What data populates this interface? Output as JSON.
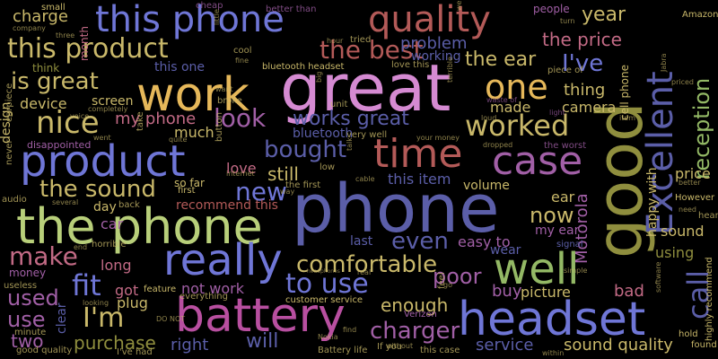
{
  "background": "#000000",
  "palette": {
    "indigo": "#5b5ea8",
    "blue": "#6f76d6",
    "olive": "#8f8e3e",
    "khaki": "#c9b86a",
    "gold": "#e6b85a",
    "green": "#93b865",
    "lime": "#b8cf7a",
    "brick": "#b35a58",
    "rose": "#c26a85",
    "pink": "#d58ad2",
    "purple": "#a15fa6",
    "magenta": "#b84fa0",
    "slate": "#4f5a93",
    "dim": "#3a3a5a"
  },
  "words": [
    {
      "id": "w-great",
      "text": "great",
      "color": "pink"
    },
    {
      "id": "w-phone",
      "text": "phone",
      "color": "indigo"
    },
    {
      "id": "w-the-phone",
      "text": "the phone",
      "color": "lime"
    },
    {
      "id": "w-good",
      "text": "good",
      "color": "olive"
    },
    {
      "id": "w-headset",
      "text": "headset",
      "color": "blue"
    },
    {
      "id": "w-battery",
      "text": "battery",
      "color": "magenta"
    },
    {
      "id": "w-product",
      "text": "product",
      "color": "blue"
    },
    {
      "id": "w-work",
      "text": "work",
      "color": "gold"
    },
    {
      "id": "w-this-phone",
      "text": "this phone",
      "color": "blue"
    },
    {
      "id": "w-quality",
      "text": "quality",
      "color": "brick"
    },
    {
      "id": "w-excellent",
      "text": "Excellent",
      "color": "indigo"
    },
    {
      "id": "w-time",
      "text": "time",
      "color": "brick"
    },
    {
      "id": "w-case",
      "text": "case",
      "color": "purple"
    },
    {
      "id": "w-really",
      "text": "really",
      "color": "blue"
    },
    {
      "id": "w-well",
      "text": "well",
      "color": "green"
    },
    {
      "id": "w-call",
      "text": "call",
      "color": "indigo"
    },
    {
      "id": "w-this-product",
      "text": "this product",
      "color": "khaki"
    },
    {
      "id": "w-one",
      "text": "one",
      "color": "gold"
    },
    {
      "id": "w-the-best",
      "text": "the best",
      "color": "brick"
    },
    {
      "id": "w-is-great",
      "text": "is great",
      "color": "khaki"
    },
    {
      "id": "w-nice",
      "text": "nice",
      "color": "khaki"
    },
    {
      "id": "w-worked",
      "text": "worked",
      "color": "khaki"
    },
    {
      "id": "w-look",
      "text": "look",
      "color": "purple"
    },
    {
      "id": "w-works-great",
      "text": "works great",
      "color": "indigo"
    },
    {
      "id": "w-comfortable",
      "text": "comfortable",
      "color": "khaki"
    },
    {
      "id": "w-to-use",
      "text": "to use",
      "color": "blue"
    },
    {
      "id": "w-the-sound",
      "text": "the sound",
      "color": "khaki"
    },
    {
      "id": "w-new",
      "text": "new",
      "color": "blue"
    },
    {
      "id": "w-bought",
      "text": "bought",
      "color": "indigo"
    },
    {
      "id": "w-reception",
      "text": "reception",
      "color": "green"
    },
    {
      "id": "w-ive",
      "text": "I've",
      "color": "blue"
    },
    {
      "id": "w-the-ear",
      "text": "the ear",
      "color": "khaki"
    },
    {
      "id": "w-year",
      "text": "year",
      "color": "khaki"
    },
    {
      "id": "w-the-price",
      "text": "the price",
      "color": "rose"
    },
    {
      "id": "w-make",
      "text": "make",
      "color": "rose"
    },
    {
      "id": "w-fit",
      "text": "fit",
      "color": "blue"
    },
    {
      "id": "w-im",
      "text": "I'm",
      "color": "khaki"
    },
    {
      "id": "w-charger",
      "text": "charger",
      "color": "purple"
    },
    {
      "id": "w-even",
      "text": "even",
      "color": "indigo"
    },
    {
      "id": "w-now",
      "text": "now",
      "color": "khaki"
    },
    {
      "id": "w-poor",
      "text": "poor",
      "color": "purple"
    },
    {
      "id": "w-used",
      "text": "used",
      "color": "purple"
    },
    {
      "id": "w-use",
      "text": "use",
      "color": "purple"
    },
    {
      "id": "w-two",
      "text": "two",
      "color": "purple"
    },
    {
      "id": "w-purchase",
      "text": "purchase",
      "color": "olive"
    },
    {
      "id": "w-will",
      "text": "will",
      "color": "indigo"
    },
    {
      "id": "w-right",
      "text": "right",
      "color": "indigo"
    },
    {
      "id": "w-enough",
      "text": "enough",
      "color": "khaki"
    },
    {
      "id": "w-service",
      "text": "service",
      "color": "indigo"
    },
    {
      "id": "w-sound-quality",
      "text": "sound quality",
      "color": "khaki"
    },
    {
      "id": "w-motorola",
      "text": "Motorola",
      "color": "purple"
    },
    {
      "id": "w-sound",
      "text": "sound",
      "color": "khaki"
    },
    {
      "id": "w-using",
      "text": "using",
      "color": "olive"
    },
    {
      "id": "w-bad",
      "text": "bad",
      "color": "rose"
    },
    {
      "id": "w-buy",
      "text": "buy",
      "color": "purple"
    },
    {
      "id": "w-picture",
      "text": "picture",
      "color": "khaki"
    },
    {
      "id": "w-my-phone",
      "text": "my phone",
      "color": "rose"
    },
    {
      "id": "w-much",
      "text": "much",
      "color": "khaki"
    },
    {
      "id": "w-device",
      "text": "device",
      "color": "khaki"
    },
    {
      "id": "w-charge",
      "text": "charge",
      "color": "khaki"
    },
    {
      "id": "w-problem",
      "text": "problem",
      "color": "indigo"
    },
    {
      "id": "w-thing",
      "text": "thing",
      "color": "khaki"
    },
    {
      "id": "w-made",
      "text": "made",
      "color": "khaki"
    },
    {
      "id": "w-camera",
      "text": "camera",
      "color": "khaki"
    },
    {
      "id": "w-still",
      "text": "still",
      "color": "khaki"
    },
    {
      "id": "w-love",
      "text": "love",
      "color": "rose"
    },
    {
      "id": "w-car",
      "text": "car",
      "color": "purple"
    },
    {
      "id": "w-long",
      "text": "long",
      "color": "rose"
    },
    {
      "id": "w-plug",
      "text": "plug",
      "color": "khaki"
    },
    {
      "id": "w-got",
      "text": "got",
      "color": "rose"
    },
    {
      "id": "w-not-work",
      "text": "not work",
      "color": "purple"
    },
    {
      "id": "w-volume",
      "text": "volume",
      "color": "khaki"
    },
    {
      "id": "w-ear",
      "text": "ear",
      "color": "khaki"
    },
    {
      "id": "w-this-item",
      "text": "this item",
      "color": "indigo"
    },
    {
      "id": "w-easy-to",
      "text": "easy to",
      "color": "purple"
    },
    {
      "id": "w-my-ear",
      "text": "my ear",
      "color": "purple"
    },
    {
      "id": "w-wear",
      "text": "wear",
      "color": "indigo"
    },
    {
      "id": "w-last",
      "text": "last",
      "color": "indigo"
    },
    {
      "id": "w-price",
      "text": "price",
      "color": "khaki"
    },
    {
      "id": "w-happy-with",
      "text": "happy with",
      "color": "khaki"
    },
    {
      "id": "w-cell-phone",
      "text": "cell phone",
      "color": "khaki"
    },
    {
      "id": "w-design",
      "text": "design",
      "color": "khaki"
    },
    {
      "id": "w-screen",
      "text": "screen",
      "color": "khaki"
    },
    {
      "id": "w-working",
      "text": "working",
      "color": "indigo"
    },
    {
      "id": "w-this-one",
      "text": "this one",
      "color": "indigo"
    },
    {
      "id": "w-recommend-this",
      "text": "recommend this",
      "color": "brick"
    },
    {
      "id": "w-bluetooth",
      "text": "bluetooth",
      "color": "indigo"
    },
    {
      "id": "w-bluetooth-headset",
      "text": "bluetooth headset",
      "color": "khaki"
    },
    {
      "id": "w-disappointed",
      "text": "disappointed",
      "color": "purple"
    },
    {
      "id": "w-people",
      "text": "people",
      "color": "purple"
    },
    {
      "id": "w-month",
      "text": "month",
      "color": "rose"
    },
    {
      "id": "w-think",
      "text": "think",
      "color": "olive"
    },
    {
      "id": "w-day",
      "text": "day",
      "color": "khaki"
    },
    {
      "id": "w-so-far",
      "text": "so far",
      "color": "khaki"
    },
    {
      "id": "w-first",
      "text": "first",
      "color": "khaki"
    },
    {
      "id": "w-feature",
      "text": "feature",
      "color": "khaki"
    },
    {
      "id": "w-customer-service",
      "text": "customer service",
      "color": "khaki"
    },
    {
      "id": "w-verizon",
      "text": "Verizon",
      "color": "purple"
    },
    {
      "id": "w-clear",
      "text": "clear",
      "color": "indigo"
    },
    {
      "id": "w-money",
      "text": "money",
      "color": "purple"
    },
    {
      "id": "w-however",
      "text": "However",
      "color": "khaki"
    },
    {
      "id": "w-amazon",
      "text": "Amazon",
      "color": "khaki"
    },
    {
      "id": "w-highly-recommend",
      "text": "highly recommend",
      "color": "khaki"
    },
    {
      "id": "w-found",
      "text": "found",
      "color": "khaki"
    },
    {
      "id": "w-hold",
      "text": "hold",
      "color": "khaki"
    },
    {
      "id": "w-signal",
      "text": "signal",
      "color": "indigo"
    },
    {
      "id": "w-small",
      "text": "small",
      "color": "khaki"
    },
    {
      "id": "w-company",
      "text": "company",
      "color": "khaki"
    },
    {
      "id": "w-three",
      "text": "three",
      "color": "khaki"
    },
    {
      "id": "w-cheap",
      "text": "cheap",
      "color": "purple"
    },
    {
      "id": "w-better-than",
      "text": "better than",
      "color": "purple"
    },
    {
      "id": "w-turn",
      "text": "turn",
      "color": "khaki"
    },
    {
      "id": "w-little",
      "text": "little",
      "color": "khaki"
    },
    {
      "id": "w-cool",
      "text": "cool",
      "color": "khaki"
    },
    {
      "id": "w-fine",
      "text": "fine",
      "color": "khaki"
    },
    {
      "id": "w-hour",
      "text": "hour",
      "color": "khaki"
    },
    {
      "id": "w-tried",
      "text": "tried",
      "color": "khaki"
    },
    {
      "id": "w-love-this",
      "text": "love this",
      "color": "khaki"
    },
    {
      "id": "w-piece-of",
      "text": "piece of",
      "color": "khaki"
    },
    {
      "id": "w-jabra",
      "text": "Jabra",
      "color": "khaki"
    },
    {
      "id": "w-priced",
      "text": "priced",
      "color": "khaki"
    },
    {
      "id": "w-waste-of",
      "text": "waste of",
      "color": "purple"
    },
    {
      "id": "w-light",
      "text": "light",
      "color": "purple"
    },
    {
      "id": "w-item",
      "text": "item",
      "color": "khaki"
    },
    {
      "id": "w-unit",
      "text": "unit",
      "color": "khaki"
    },
    {
      "id": "w-big",
      "text": "big",
      "color": "khaki"
    },
    {
      "id": "w-terrible",
      "text": "terrible",
      "color": "khaki"
    },
    {
      "id": "w-loud",
      "text": "loud",
      "color": "khaki"
    },
    {
      "id": "w-very-well",
      "text": "very well",
      "color": "khaki"
    },
    {
      "id": "w-your-money",
      "text": "your money",
      "color": "khaki"
    },
    {
      "id": "w-the-worst",
      "text": "the worst",
      "color": "purple"
    },
    {
      "id": "w-dropped",
      "text": "dropped",
      "color": "khaki"
    },
    {
      "id": "w-broke",
      "text": "broke",
      "color": "khaki"
    },
    {
      "id": "w-button",
      "text": "button",
      "color": "khaki"
    },
    {
      "id": "w-internet",
      "text": "internet",
      "color": "khaki"
    },
    {
      "id": "w-the-first",
      "text": "the first",
      "color": "khaki"
    },
    {
      "id": "w-way",
      "text": "way",
      "color": "khaki"
    },
    {
      "id": "w-cable",
      "text": "cable",
      "color": "khaki"
    },
    {
      "id": "w-talk",
      "text": "talk",
      "color": "khaki"
    },
    {
      "id": "w-low",
      "text": "low",
      "color": "khaki"
    },
    {
      "id": "w-without",
      "text": "without",
      "color": "khaki"
    },
    {
      "id": "w-several",
      "text": "several",
      "color": "khaki"
    },
    {
      "id": "w-back",
      "text": "back",
      "color": "khaki"
    },
    {
      "id": "w-audio",
      "text": "audio",
      "color": "khaki"
    },
    {
      "id": "w-never",
      "text": "never",
      "color": "khaki"
    },
    {
      "id": "w-horrible",
      "text": "horrible",
      "color": "khaki"
    },
    {
      "id": "w-end",
      "text": "end",
      "color": "khaki"
    },
    {
      "id": "w-useless",
      "text": "useless",
      "color": "khaki"
    },
    {
      "id": "w-looking",
      "text": "looking",
      "color": "khaki"
    },
    {
      "id": "w-minute",
      "text": "minute",
      "color": "khaki"
    },
    {
      "id": "w-do-not",
      "text": "DO NOT",
      "color": "khaki"
    },
    {
      "id": "w-everything",
      "text": "everything",
      "color": "khaki"
    },
    {
      "id": "w-headphones",
      "text": "headphones",
      "color": "khaki"
    },
    {
      "id": "w-real",
      "text": "real",
      "color": "khaki"
    },
    {
      "id": "w-nokia",
      "text": "Nokia",
      "color": "khaki"
    },
    {
      "id": "w-find",
      "text": "find",
      "color": "khaki"
    },
    {
      "id": "w-battery-life",
      "text": "Battery life",
      "color": "khaki"
    },
    {
      "id": "w-if-you",
      "text": "If you",
      "color": "khaki"
    },
    {
      "id": "w-this-case",
      "text": "this case",
      "color": "khaki"
    },
    {
      "id": "w-good-quality",
      "text": "good quality",
      "color": "khaki"
    },
    {
      "id": "w-ive-had",
      "text": "I've had",
      "color": "khaki"
    },
    {
      "id": "w-feel",
      "text": "feel",
      "color": "khaki"
    },
    {
      "id": "w-go",
      "text": "go",
      "color": "khaki"
    },
    {
      "id": "w-simple",
      "text": "simple",
      "color": "khaki"
    },
    {
      "id": "w-software",
      "text": "software",
      "color": "khaki"
    },
    {
      "id": "w-hear",
      "text": "hear",
      "color": "khaki"
    },
    {
      "id": "w-need",
      "text": "need",
      "color": "khaki"
    },
    {
      "id": "w-better",
      "text": "better",
      "color": "khaki"
    },
    {
      "id": "w-earpiece",
      "text": "earpiece",
      "color": "khaki"
    },
    {
      "id": "w-voice",
      "text": "voice",
      "color": "khaki"
    },
    {
      "id": "w-completely",
      "text": "completely",
      "color": "khaki"
    },
    {
      "id": "w-went",
      "text": "went",
      "color": "khaki"
    },
    {
      "id": "w-take",
      "text": "take",
      "color": "khaki"
    },
    {
      "id": "w-quite",
      "text": "quite",
      "color": "khaki"
    },
    {
      "id": "w-want",
      "text": "want",
      "color": "khaki"
    },
    {
      "id": "w-week",
      "text": "week",
      "color": "khaki"
    },
    {
      "id": "w-within",
      "text": "within",
      "color": "khaki"
    }
  ]
}
